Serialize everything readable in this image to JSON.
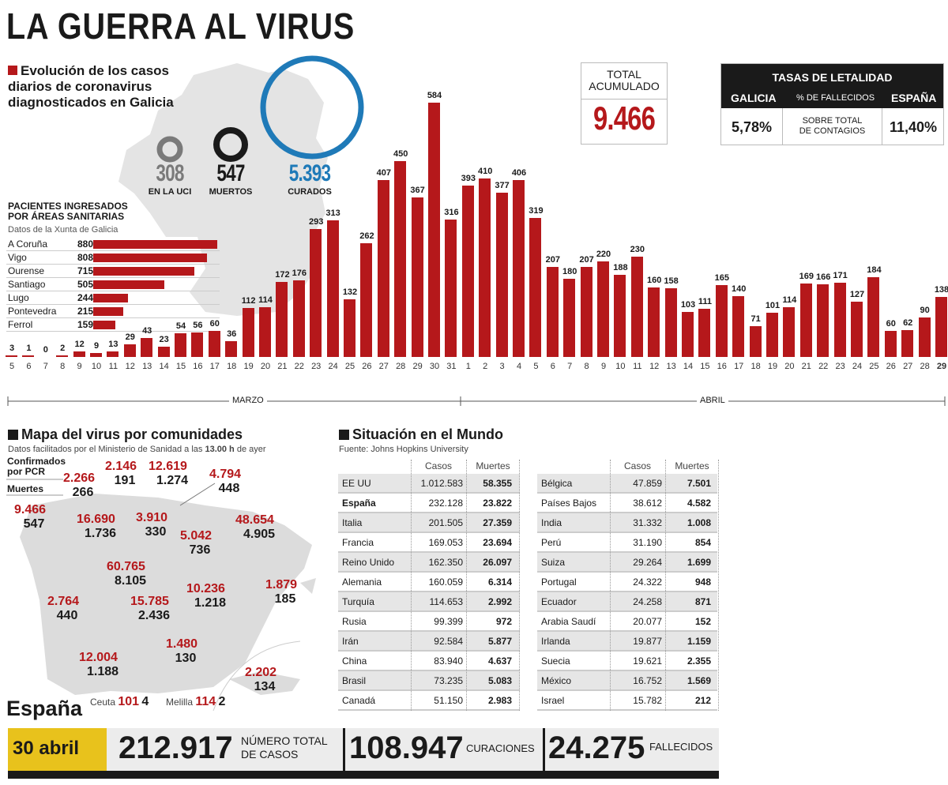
{
  "title": "LA GUERRA AL VIRUS",
  "galicia": {
    "subtitle": "Evolución de los casos diarios de coronavirus diagnosticados en Galicia",
    "rings": [
      {
        "value": "308",
        "label": "EN LA UCI",
        "color": "#7a7a7a"
      },
      {
        "value": "547",
        "label": "MUERTOS",
        "color": "#1a1a1a"
      },
      {
        "value": "5.393",
        "label": "CURADOS",
        "color": "#1f7ab8"
      }
    ],
    "total": {
      "label": "TOTAL ACUMULADO",
      "value": "9.466"
    },
    "lethality": {
      "title": "TASAS DE LETALIDAD",
      "left_label": "GALICIA",
      "mid_label": "% DE FALLECIDOS",
      "right_label": "ESPAÑA",
      "left_value": "5,78%",
      "mid_value": "SOBRE TOTAL DE CONTAGIOS",
      "right_value": "11,40%"
    },
    "hospital": {
      "title_line1": "PACIENTES INGRESADOS",
      "title_line2": "POR ÁREAS SANITARIAS",
      "source": "Datos de la Xunta de Galicia",
      "rows": [
        {
          "name": "A Coruña",
          "value": 880
        },
        {
          "name": "Vigo",
          "value": 808
        },
        {
          "name": "Ourense",
          "value": 715
        },
        {
          "name": "Santiago",
          "value": 505
        },
        {
          "name": "Lugo",
          "value": 244
        },
        {
          "name": "Pontevedra",
          "value": 215
        },
        {
          "name": "Ferrol",
          "value": 159
        }
      ]
    }
  },
  "chart_data": {
    "type": "bar",
    "title": "Evolución de los casos diarios de coronavirus diagnosticados en Galicia",
    "month_labels": [
      "MARZO",
      "ABRIL"
    ],
    "categories": [
      "5",
      "6",
      "7",
      "8",
      "9",
      "10",
      "11",
      "12",
      "13",
      "14",
      "15",
      "16",
      "17",
      "18",
      "19",
      "20",
      "21",
      "22",
      "23",
      "24",
      "25",
      "26",
      "27",
      "28",
      "29",
      "30",
      "31",
      "1",
      "2",
      "3",
      "4",
      "5",
      "6",
      "7",
      "8",
      "9",
      "10",
      "11",
      "12",
      "13",
      "14",
      "15",
      "16",
      "17",
      "18",
      "19",
      "20",
      "21",
      "22",
      "23",
      "24",
      "25",
      "26",
      "27",
      "28",
      "29"
    ],
    "values": [
      3,
      1,
      0,
      2,
      12,
      9,
      13,
      29,
      43,
      23,
      54,
      56,
      60,
      36,
      112,
      114,
      172,
      176,
      293,
      313,
      132,
      262,
      407,
      450,
      367,
      584,
      316,
      393,
      410,
      377,
      406,
      319,
      207,
      180,
      207,
      220,
      188,
      230,
      160,
      158,
      103,
      111,
      165,
      140,
      71,
      101,
      114,
      169,
      166,
      171,
      127,
      184,
      60,
      62,
      90,
      138
    ],
    "color": "#b5181b",
    "ylim": [
      0,
      584
    ]
  },
  "spain_map": {
    "title": "Mapa del virus por comunidades",
    "source_pre": "Datos facilitados por el Ministerio de Sanidad a las ",
    "source_bold": "13.00 h",
    "source_post": " de ayer",
    "legend_confirmed": "Confirmados por PCR",
    "legend_deaths": "Muertes",
    "communities": [
      {
        "confirmed": "9.466",
        "deaths": "547"
      },
      {
        "confirmed": "2.266",
        "deaths": "266"
      },
      {
        "confirmed": "2.146",
        "deaths": "191"
      },
      {
        "confirmed": "12.619",
        "deaths": "1.274"
      },
      {
        "confirmed": "4.794",
        "deaths": "448"
      },
      {
        "confirmed": "16.690",
        "deaths": "1.736"
      },
      {
        "confirmed": "3.910",
        "deaths": "330"
      },
      {
        "confirmed": "48.654",
        "deaths": "4.905"
      },
      {
        "confirmed": "5.042",
        "deaths": "736"
      },
      {
        "confirmed": "60.765",
        "deaths": "8.105"
      },
      {
        "confirmed": "10.236",
        "deaths": "1.218"
      },
      {
        "confirmed": "1.879",
        "deaths": "185"
      },
      {
        "confirmed": "2.764",
        "deaths": "440"
      },
      {
        "confirmed": "15.785",
        "deaths": "2.436"
      },
      {
        "confirmed": "1.480",
        "deaths": "130"
      },
      {
        "confirmed": "12.004",
        "deaths": "1.188"
      },
      {
        "confirmed": "2.202",
        "deaths": "134"
      }
    ],
    "ceuta": {
      "name": "Ceuta",
      "confirmed": "101",
      "deaths": "4"
    },
    "melilla": {
      "name": "Melilla",
      "confirmed": "114",
      "deaths": "2"
    }
  },
  "world": {
    "title": "Situación en el Mundo",
    "source": "Fuente: Johns Hopkins University",
    "col_cases": "Casos",
    "col_deaths": "Muertes",
    "left": [
      {
        "country": "EE UU",
        "cases": "1.012.583",
        "deaths": "58.355"
      },
      {
        "country": "España",
        "cases": "232.128",
        "deaths": "23.822"
      },
      {
        "country": "Italia",
        "cases": "201.505",
        "deaths": "27.359"
      },
      {
        "country": "Francia",
        "cases": "169.053",
        "deaths": "23.694"
      },
      {
        "country": "Reino Unido",
        "cases": "162.350",
        "deaths": "26.097"
      },
      {
        "country": "Alemania",
        "cases": "160.059",
        "deaths": "6.314"
      },
      {
        "country": "Turquía",
        "cases": "114.653",
        "deaths": "2.992"
      },
      {
        "country": "Rusia",
        "cases": "99.399",
        "deaths": "972"
      },
      {
        "country": "Irán",
        "cases": "92.584",
        "deaths": "5.877"
      },
      {
        "country": "China",
        "cases": "83.940",
        "deaths": "4.637"
      },
      {
        "country": "Brasil",
        "cases": "73.235",
        "deaths": "5.083"
      },
      {
        "country": "Canadá",
        "cases": "51.150",
        "deaths": "2.983"
      }
    ],
    "right": [
      {
        "country": "Bélgica",
        "cases": "47.859",
        "deaths": "7.501"
      },
      {
        "country": "Países Bajos",
        "cases": "38.612",
        "deaths": "4.582"
      },
      {
        "country": "India",
        "cases": "31.332",
        "deaths": "1.008"
      },
      {
        "country": "Perú",
        "cases": "31.190",
        "deaths": "854"
      },
      {
        "country": "Suiza",
        "cases": "29.264",
        "deaths": "1.699"
      },
      {
        "country": "Portugal",
        "cases": "24.322",
        "deaths": "948"
      },
      {
        "country": "Ecuador",
        "cases": "24.258",
        "deaths": "871"
      },
      {
        "country": "Arabia Saudí",
        "cases": "20.077",
        "deaths": "152"
      },
      {
        "country": "Irlanda",
        "cases": "19.877",
        "deaths": "1.159"
      },
      {
        "country": "Suecia",
        "cases": "19.621",
        "deaths": "2.355"
      },
      {
        "country": "México",
        "cases": "16.752",
        "deaths": "1.569"
      },
      {
        "country": "Israel",
        "cases": "15.782",
        "deaths": "212"
      }
    ]
  },
  "spain_summary": {
    "heading": "España",
    "date": "30 abril",
    "total": "212.917",
    "total_label_1": "NÚMERO TOTAL",
    "total_label_2": "DE CASOS",
    "cured": "108.947",
    "cured_label": "CURACIONES",
    "deaths": "24.275",
    "deaths_label": "FALLECIDOS",
    "date_color": "#e8c21c"
  }
}
